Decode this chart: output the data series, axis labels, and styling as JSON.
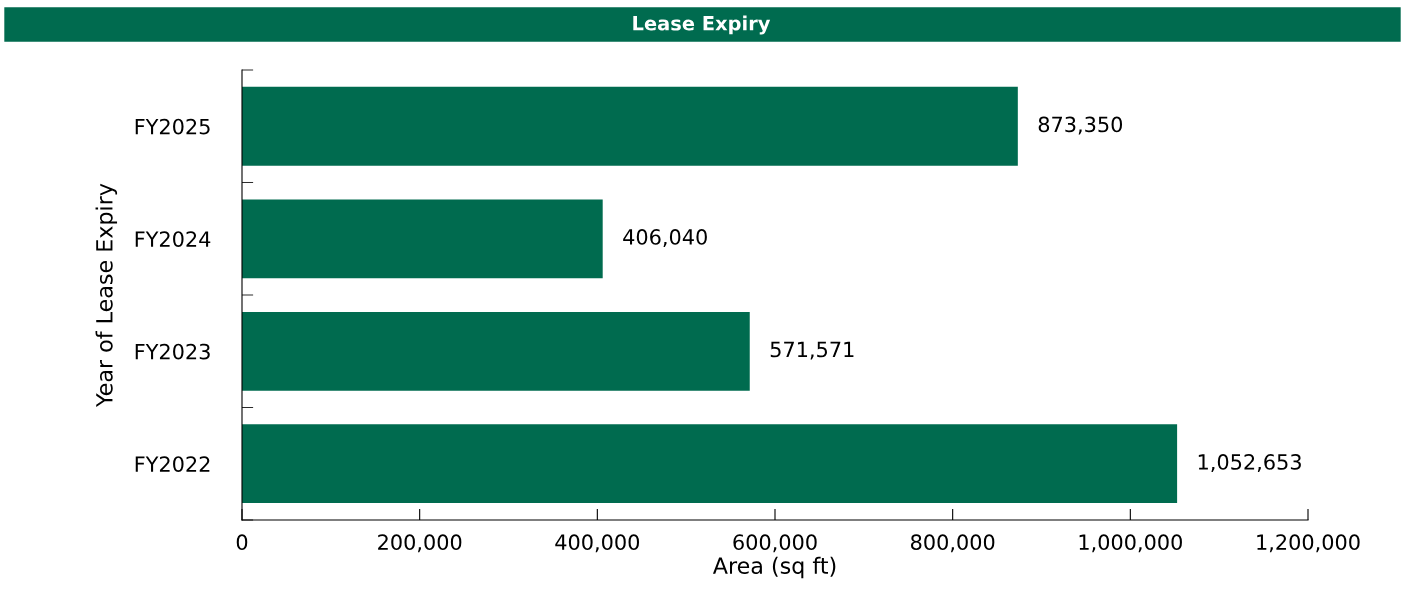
{
  "chart_data": {
    "type": "bar",
    "orientation": "horizontal",
    "title": "Lease Expiry",
    "xlabel": "Area (sq ft)",
    "ylabel": "Year of Lease Expiry",
    "categories": [
      "FY2025",
      "FY2024",
      "FY2023",
      "FY2022"
    ],
    "values": [
      873350,
      406040,
      571571,
      1052653
    ],
    "value_labels": [
      "873,350",
      "406,040",
      "571,571",
      "1,052,653"
    ],
    "color": "#006b4f",
    "xlim": [
      0,
      1200000
    ],
    "xticks": [
      0,
      {
        "value": 200000,
        "label": "200,000"
      },
      {
        "value": 400000,
        "label": "400,000"
      },
      {
        "value": 600000,
        "label": "600,000"
      },
      {
        "value": 800000,
        "label": "800,000"
      },
      {
        "value": 1000000,
        "label": "1,000,000"
      },
      {
        "value": 1200000,
        "label": "1,200,000"
      }
    ],
    "grid": false,
    "legend": false
  }
}
